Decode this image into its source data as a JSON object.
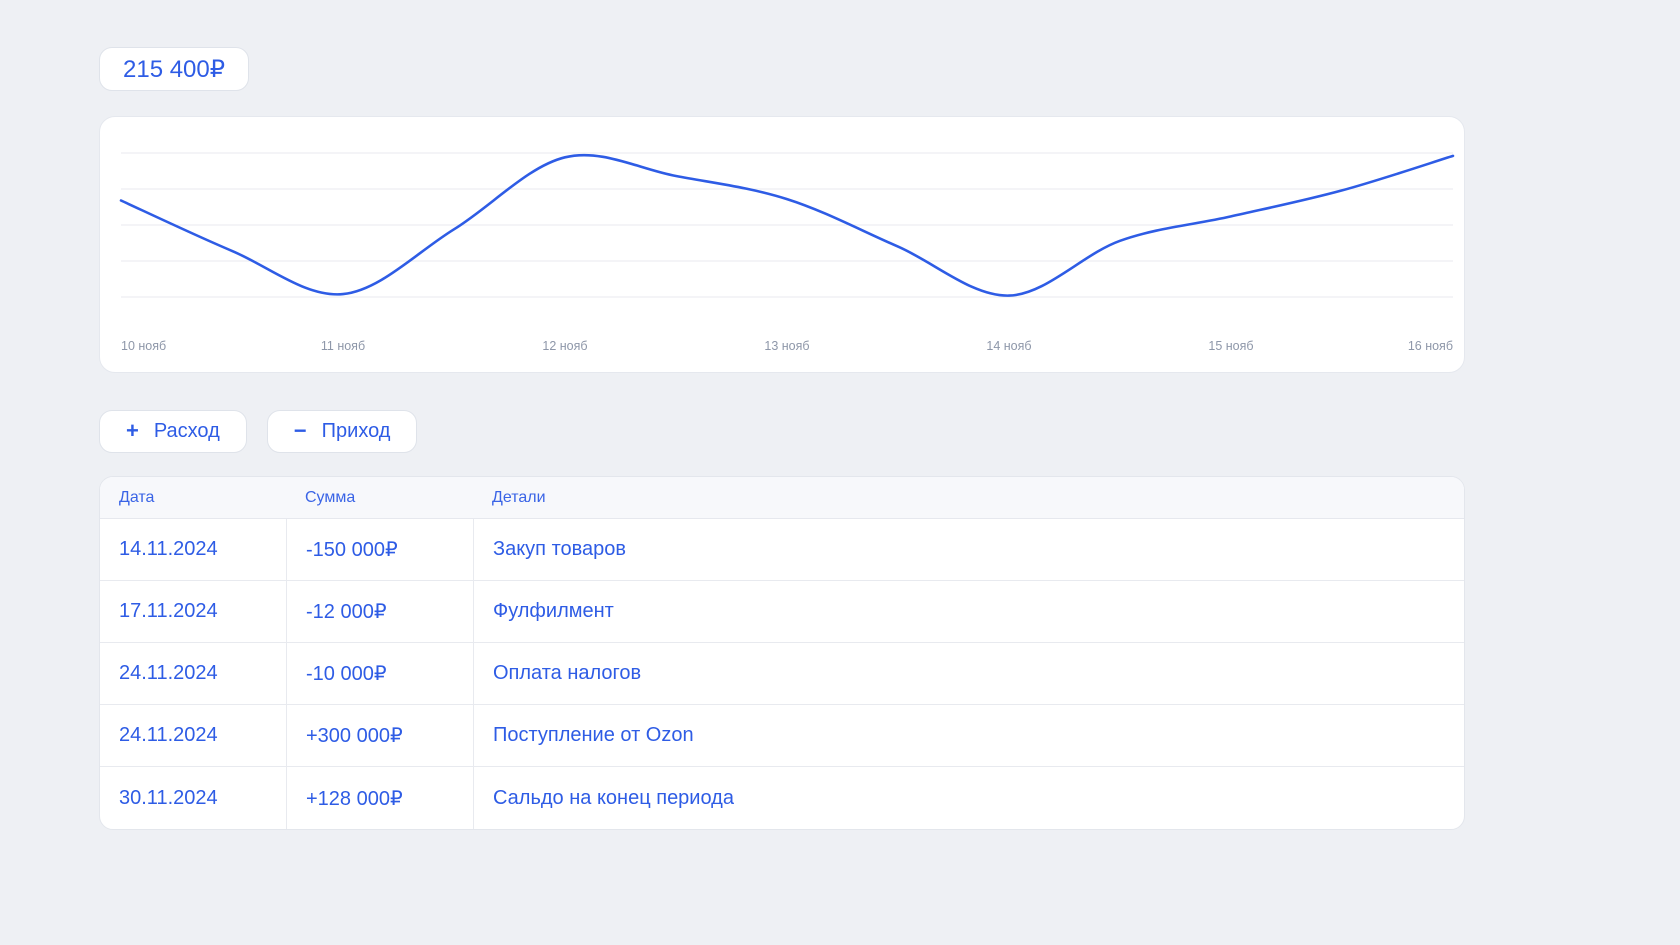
{
  "balance": {
    "label": "215 400₽"
  },
  "chart_data": {
    "type": "line",
    "title": "",
    "xlabel": "",
    "ylabel": "",
    "x": [
      10,
      10.5,
      11,
      11.5,
      12,
      12.5,
      13,
      13.5,
      14,
      14.5,
      15,
      15.5,
      16
    ],
    "values": [
      67,
      32,
      2,
      47,
      97,
      84,
      68,
      35,
      1,
      39,
      56,
      74,
      98
    ],
    "tick_x": [
      10,
      11,
      12,
      13,
      14,
      15,
      16
    ],
    "categories": [
      "10 нояб",
      "11 нояб",
      "12 нояб",
      "13 нояб",
      "14 нояб",
      "15 нояб",
      "16 нояб"
    ],
    "ylim": [
      0,
      100
    ],
    "grid": true,
    "gridline_count": 5,
    "legend": "none",
    "line_color": "#2e5ce5"
  },
  "icons": {
    "plus": "+",
    "minus": "−"
  },
  "actions": {
    "expense_label": "Расход",
    "income_label": "Приход"
  },
  "table": {
    "headers": [
      "Дата",
      "Сумма",
      "Детали"
    ],
    "rows": [
      [
        "14.11.2024",
        "-150 000₽",
        "Закуп товаров"
      ],
      [
        "17.11.2024",
        "-12 000₽",
        "Фулфилмент"
      ],
      [
        "24.11.2024",
        "-10 000₽",
        "Оплата налогов"
      ],
      [
        "24.11.2024",
        "+300 000₽",
        "Поступление от Ozon"
      ],
      [
        "30.11.2024",
        "+128 000₽",
        "Сальдо на конец периода"
      ]
    ]
  },
  "colors": {
    "accent": "#2e5ce5",
    "background": "#eef0f4",
    "grid": "#e8eaef",
    "muted": "#8e97a9"
  }
}
